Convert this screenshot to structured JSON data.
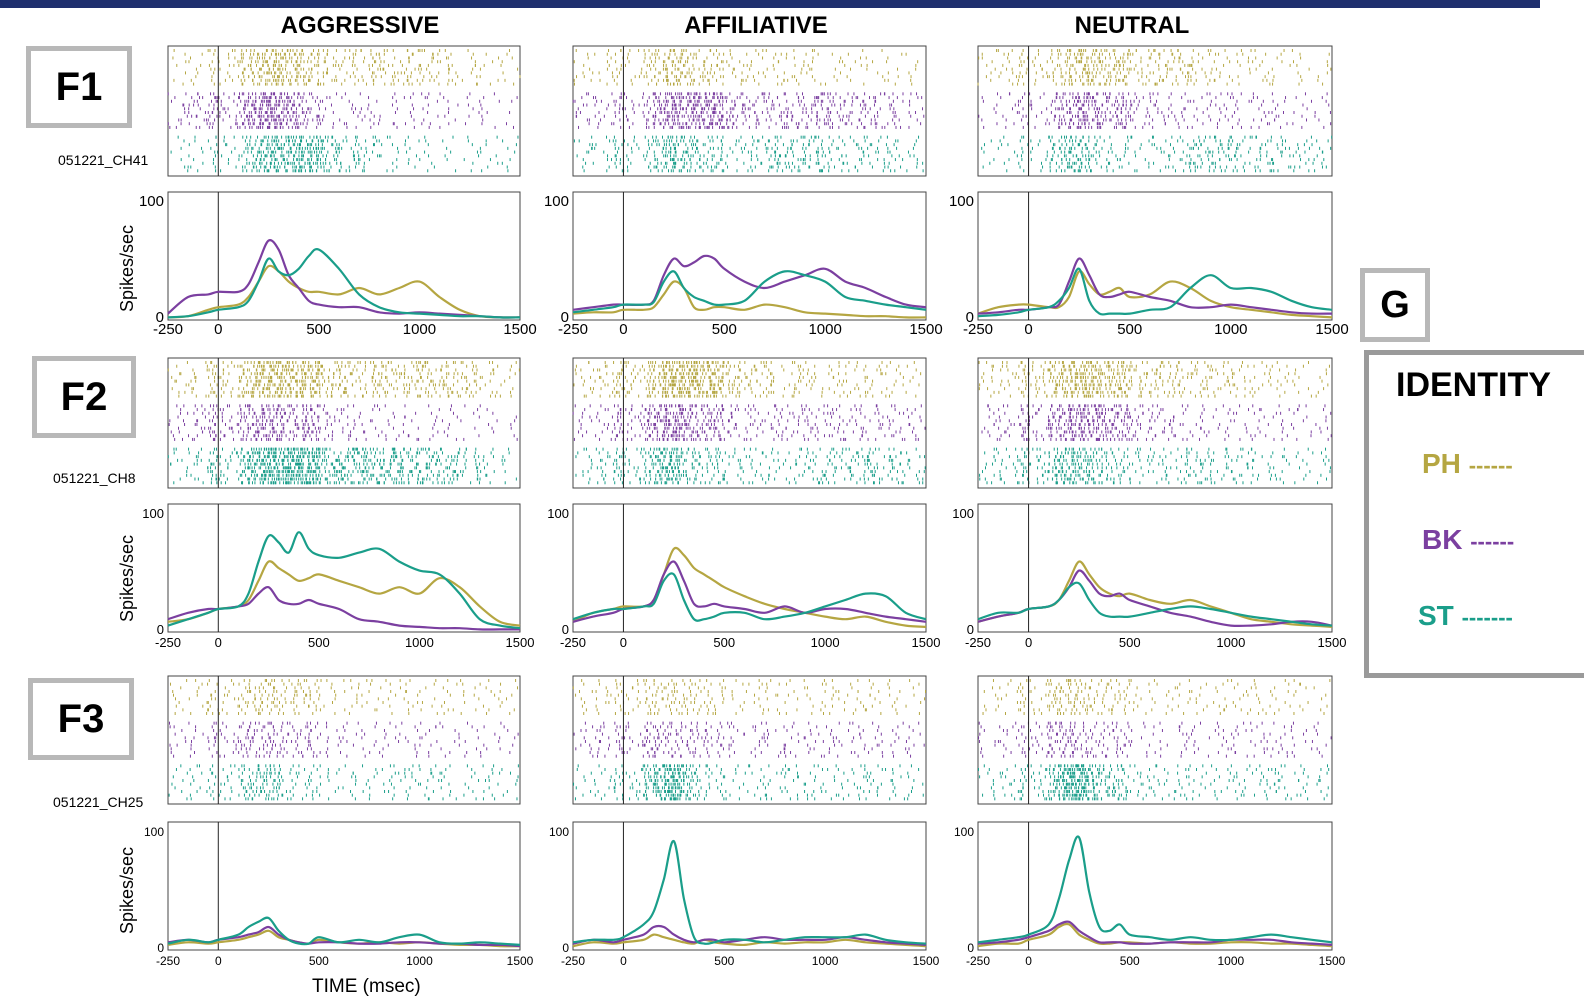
{
  "columns": [
    "AGGRESSIVE",
    "AFFILIATIVE",
    "NEUTRAL"
  ],
  "panels": [
    {
      "label": "F1",
      "channel": "051221_CH41"
    },
    {
      "label": "F2",
      "channel": "051221_CH8"
    },
    {
      "label": "F3",
      "channel": "051221_CH25"
    }
  ],
  "ylabel": "Spikes/sec",
  "xlabel": "TIME (msec)",
  "legend": {
    "panel_label": "G",
    "title": "IDENTITY",
    "items": [
      {
        "name": "PH",
        "dashes": "------",
        "color": "#b5a642"
      },
      {
        "name": "BK",
        "dashes": "------",
        "color": "#7b3fa0"
      },
      {
        "name": "ST",
        "dashes": "-------",
        "color": "#1a9e8a"
      }
    ]
  },
  "colors": {
    "PH": "#b5a642",
    "BK": "#7b3fa0",
    "ST": "#1a9e8a",
    "topbar": "#1f2f6e"
  },
  "chart_data": {
    "type": "line",
    "x_ticks": [
      -250,
      0,
      500,
      1000,
      1500
    ],
    "xlim": [
      -250,
      1500
    ],
    "ylim": [
      0,
      100
    ],
    "y_ticks": [
      0,
      100
    ],
    "x": [
      -250,
      -150,
      -50,
      0,
      100,
      150,
      200,
      250,
      300,
      350,
      400,
      450,
      500,
      600,
      700,
      800,
      900,
      1000,
      1100,
      1200,
      1300,
      1400,
      1500
    ],
    "panels": [
      {
        "row": "F1",
        "col": "AGGRESSIVE",
        "series": [
          {
            "name": "PH",
            "values": [
              2,
              3,
              8,
              10,
              12,
              18,
              30,
              42,
              38,
              30,
              25,
              22,
              22,
              20,
              25,
              20,
              25,
              30,
              18,
              8,
              3,
              2,
              2
            ]
          },
          {
            "name": "BK",
            "values": [
              5,
              18,
              20,
              22,
              22,
              28,
              45,
              62,
              55,
              35,
              25,
              15,
              12,
              10,
              10,
              6,
              5,
              6,
              5,
              4,
              3,
              2,
              2
            ]
          },
          {
            "name": "ST",
            "values": [
              2,
              3,
              6,
              8,
              10,
              15,
              30,
              48,
              38,
              35,
              40,
              50,
              55,
              40,
              20,
              10,
              6,
              5,
              4,
              3,
              3,
              2,
              2
            ]
          }
        ]
      },
      {
        "row": "F1",
        "col": "AFFILIATIVE",
        "series": [
          {
            "name": "PH",
            "values": [
              5,
              6,
              6,
              8,
              8,
              10,
              20,
              30,
              25,
              10,
              8,
              10,
              10,
              8,
              12,
              10,
              6,
              5,
              4,
              3,
              3,
              2,
              2
            ]
          },
          {
            "name": "BK",
            "values": [
              8,
              10,
              12,
              12,
              12,
              15,
              35,
              48,
              42,
              45,
              50,
              48,
              40,
              30,
              25,
              30,
              35,
              40,
              30,
              25,
              18,
              12,
              10
            ]
          },
          {
            "name": "ST",
            "values": [
              6,
              8,
              10,
              12,
              12,
              14,
              30,
              38,
              25,
              18,
              15,
              12,
              12,
              15,
              30,
              38,
              35,
              30,
              18,
              15,
              12,
              10,
              8
            ]
          }
        ]
      },
      {
        "row": "F1",
        "col": "NEUTRAL",
        "series": [
          {
            "name": "PH",
            "values": [
              5,
              10,
              12,
              12,
              10,
              10,
              18,
              38,
              28,
              20,
              22,
              25,
              18,
              20,
              30,
              25,
              15,
              10,
              8,
              6,
              4,
              3,
              2
            ]
          },
          {
            "name": "BK",
            "values": [
              5,
              6,
              8,
              8,
              10,
              12,
              30,
              48,
              35,
              20,
              18,
              20,
              22,
              18,
              15,
              10,
              10,
              12,
              10,
              8,
              6,
              5,
              5
            ]
          },
          {
            "name": "ST",
            "values": [
              3,
              4,
              6,
              8,
              10,
              15,
              25,
              40,
              15,
              5,
              5,
              5,
              5,
              8,
              10,
              25,
              35,
              25,
              25,
              22,
              15,
              10,
              8
            ]
          }
        ]
      },
      {
        "row": "F2",
        "col": "AGGRESSIVE",
        "series": [
          {
            "name": "PH",
            "values": [
              8,
              10,
              15,
              18,
              20,
              25,
              40,
              55,
              50,
              45,
              40,
              42,
              45,
              40,
              35,
              30,
              35,
              30,
              42,
              35,
              20,
              8,
              5
            ]
          },
          {
            "name": "BK",
            "values": [
              10,
              15,
              18,
              18,
              20,
              22,
              30,
              35,
              25,
              22,
              22,
              25,
              22,
              18,
              10,
              8,
              5,
              4,
              3,
              3,
              2,
              2,
              2
            ]
          },
          {
            "name": "ST",
            "values": [
              5,
              10,
              15,
              18,
              20,
              30,
              55,
              75,
              70,
              62,
              78,
              65,
              60,
              58,
              62,
              65,
              55,
              48,
              45,
              30,
              10,
              5,
              3
            ]
          }
        ]
      },
      {
        "row": "F2",
        "col": "AFFILIATIVE",
        "series": [
          {
            "name": "PH",
            "values": [
              8,
              15,
              18,
              20,
              20,
              25,
              45,
              65,
              60,
              50,
              45,
              40,
              35,
              28,
              22,
              18,
              15,
              12,
              10,
              12,
              8,
              5,
              4
            ]
          },
          {
            "name": "BK",
            "values": [
              8,
              12,
              15,
              18,
              20,
              25,
              45,
              55,
              40,
              22,
              20,
              22,
              20,
              18,
              15,
              20,
              15,
              18,
              18,
              15,
              12,
              10,
              8
            ]
          },
          {
            "name": "ST",
            "values": [
              10,
              15,
              18,
              18,
              20,
              22,
              40,
              45,
              25,
              10,
              10,
              12,
              15,
              15,
              10,
              12,
              15,
              20,
              25,
              30,
              28,
              15,
              10
            ]
          }
        ]
      },
      {
        "row": "F2",
        "col": "NEUTRAL",
        "series": [
          {
            "name": "PH",
            "values": [
              8,
              12,
              15,
              18,
              20,
              25,
              40,
              55,
              45,
              35,
              30,
              28,
              30,
              25,
              22,
              25,
              20,
              15,
              10,
              8,
              6,
              5,
              4
            ]
          },
          {
            "name": "BK",
            "values": [
              8,
              12,
              15,
              18,
              20,
              25,
              35,
              48,
              40,
              30,
              28,
              30,
              25,
              20,
              15,
              12,
              8,
              5,
              5,
              6,
              8,
              8,
              5
            ]
          },
          {
            "name": "ST",
            "values": [
              10,
              15,
              15,
              18,
              20,
              25,
              35,
              38,
              25,
              15,
              12,
              12,
              12,
              15,
              18,
              20,
              18,
              15,
              12,
              10,
              8,
              6,
              5
            ]
          }
        ]
      },
      {
        "row": "F3",
        "col": "AGGRESSIVE",
        "series": [
          {
            "name": "PH",
            "values": [
              4,
              6,
              5,
              6,
              8,
              10,
              12,
              15,
              10,
              8,
              6,
              5,
              8,
              6,
              5,
              6,
              5,
              6,
              5,
              4,
              4,
              3,
              3
            ]
          },
          {
            "name": "BK",
            "values": [
              6,
              8,
              6,
              8,
              10,
              12,
              14,
              18,
              12,
              8,
              6,
              5,
              6,
              6,
              5,
              5,
              6,
              6,
              5,
              5,
              4,
              4,
              3
            ]
          },
          {
            "name": "ST",
            "values": [
              5,
              8,
              6,
              8,
              12,
              18,
              22,
              25,
              15,
              8,
              5,
              5,
              10,
              6,
              8,
              6,
              10,
              12,
              6,
              5,
              6,
              5,
              4
            ]
          }
        ]
      },
      {
        "row": "F3",
        "col": "AFFILIATIVE",
        "series": [
          {
            "name": "PH",
            "values": [
              3,
              6,
              5,
              6,
              8,
              12,
              10,
              8,
              6,
              5,
              8,
              6,
              5,
              4,
              6,
              5,
              6,
              6,
              8,
              6,
              5,
              4,
              3
            ]
          },
          {
            "name": "BK",
            "values": [
              5,
              8,
              6,
              8,
              12,
              18,
              18,
              12,
              8,
              6,
              8,
              8,
              6,
              8,
              10,
              8,
              8,
              8,
              10,
              8,
              6,
              5,
              4
            ]
          },
          {
            "name": "ST",
            "values": [
              6,
              8,
              8,
              10,
              20,
              30,
              55,
              85,
              40,
              10,
              5,
              6,
              8,
              8,
              6,
              8,
              10,
              10,
              10,
              12,
              8,
              6,
              5
            ]
          }
        ]
      },
      {
        "row": "F3",
        "col": "NEUTRAL",
        "series": [
          {
            "name": "PH",
            "values": [
              3,
              5,
              5,
              8,
              12,
              18,
              20,
              12,
              8,
              5,
              5,
              6,
              6,
              5,
              6,
              5,
              5,
              6,
              6,
              5,
              5,
              4,
              3
            ]
          },
          {
            "name": "BK",
            "values": [
              5,
              6,
              8,
              10,
              15,
              20,
              22,
              15,
              10,
              6,
              6,
              6,
              5,
              5,
              6,
              6,
              6,
              8,
              8,
              8,
              6,
              5,
              4
            ]
          },
          {
            "name": "ST",
            "values": [
              6,
              8,
              10,
              12,
              20,
              40,
              70,
              88,
              45,
              18,
              15,
              20,
              12,
              10,
              8,
              10,
              8,
              8,
              10,
              12,
              10,
              8,
              6
            ]
          }
        ]
      }
    ]
  }
}
